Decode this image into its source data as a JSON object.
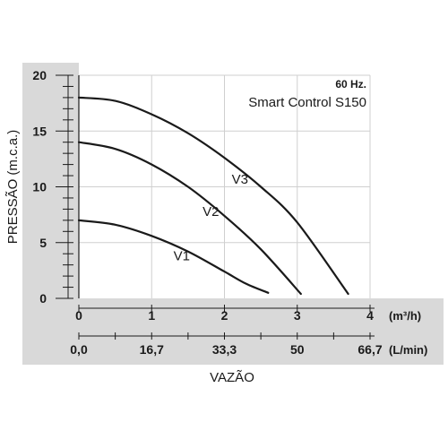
{
  "chart_data": {
    "type": "line",
    "annotation_frequency": "60 Hz.",
    "annotation_model": "Smart Control S150",
    "ylabel": "PRESSÃO (m.c.a.)",
    "xlabel": "VAZÃO",
    "ylim": [
      0,
      20
    ],
    "yticks": [
      "0",
      "5",
      "10",
      "15",
      "20"
    ],
    "xlim": [
      0,
      4
    ],
    "xticks": [
      "0",
      "1",
      "2",
      "3",
      "4"
    ],
    "xunit": "(m³/h)",
    "x2ticks": [
      "0,0",
      "16,7",
      "33,3",
      "50",
      "66,7"
    ],
    "x2unit": "(L/min)",
    "grid": true,
    "series": [
      {
        "name": "V1",
        "x": [
          0,
          0.5,
          1,
          1.5,
          2,
          2.3,
          2.6
        ],
        "y": [
          7.0,
          6.6,
          5.6,
          4.2,
          2.4,
          1.3,
          0.5
        ]
      },
      {
        "name": "V2",
        "x": [
          0,
          0.5,
          1,
          1.5,
          2,
          2.5,
          3.05
        ],
        "y": [
          14.0,
          13.4,
          12.0,
          10.0,
          7.4,
          4.4,
          0.4
        ]
      },
      {
        "name": "V3",
        "x": [
          0,
          0.5,
          1,
          1.5,
          2,
          2.5,
          3,
          3.7
        ],
        "y": [
          18.0,
          17.7,
          16.5,
          14.8,
          12.6,
          10.0,
          6.8,
          0.4
        ]
      }
    ],
    "series_label_positions": [
      {
        "name": "V1",
        "x": 1.3,
        "y": 3.4
      },
      {
        "name": "V2",
        "x": 1.7,
        "y": 7.4
      },
      {
        "name": "V3",
        "x": 2.1,
        "y": 10.3
      }
    ],
    "colors": {
      "panel": "#d9d9d9",
      "plot": "#ffffff",
      "grid": "#cfcfcf",
      "line": "#1a1a1a"
    }
  }
}
